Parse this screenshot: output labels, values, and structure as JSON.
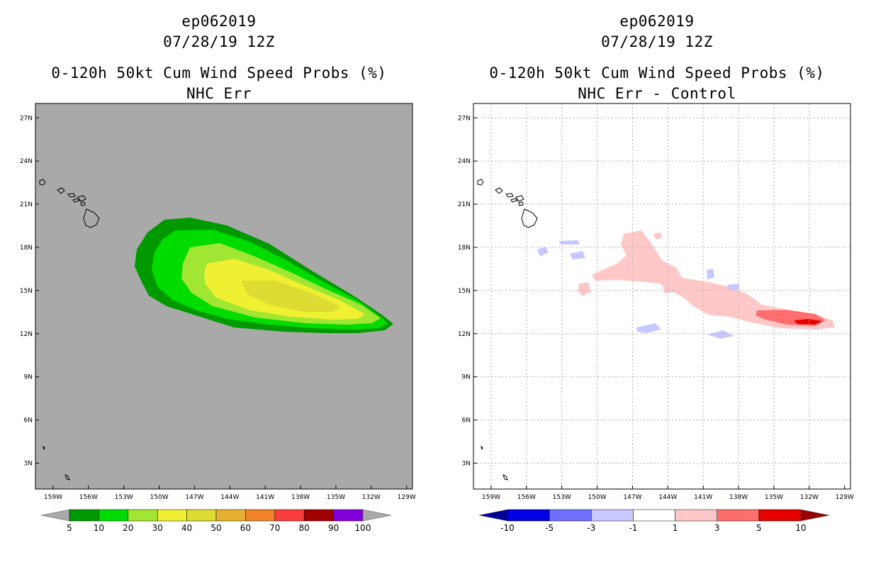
{
  "left_panel": {
    "storm_id": "ep062019",
    "datetime": "07/28/19 12Z",
    "product": "0-120h 50kt Cum Wind Speed Probs (%)",
    "subtitle": "NHC Err",
    "colorbar": {
      "labels": [
        "5",
        "10",
        "20",
        "30",
        "40",
        "50",
        "60",
        "70",
        "80",
        "90",
        "100"
      ],
      "colors": [
        "#009a00",
        "#00dc00",
        "#a0e632",
        "#f0f032",
        "#dcdc32",
        "#e6af2d",
        "#f08228",
        "#fa3c3c",
        "#a00000",
        "#8200dc"
      ],
      "under_color": "#a9a9a9",
      "over_color": "#a9a9a9"
    },
    "background_color": "#a9a9a9"
  },
  "right_panel": {
    "storm_id": "ep062019",
    "datetime": "07/28/19 12Z",
    "product": "0-120h 50kt Cum Wind Speed Probs (%)",
    "subtitle": "NHC Err - Control",
    "colorbar": {
      "labels": [
        "-10",
        "-5",
        "-3",
        "-1",
        "1",
        "3",
        "5",
        "10"
      ],
      "colors": [
        "#0000e6",
        "#6e6eff",
        "#c8c8ff",
        "#ffffff",
        "#ffc8c8",
        "#ff6e6e",
        "#e60000"
      ],
      "under_color": "#000096",
      "over_color": "#960000"
    },
    "background_color": "#ffffff"
  },
  "axes": {
    "lat_labels": [
      "27N",
      "24N",
      "21N",
      "18N",
      "15N",
      "12N",
      "9N",
      "6N",
      "3N"
    ],
    "lon_labels": [
      "159W",
      "156W",
      "153W",
      "150W",
      "147W",
      "144W",
      "141W",
      "138W",
      "135W",
      "132W",
      "129W"
    ],
    "lat_values": [
      27,
      24,
      21,
      18,
      15,
      12,
      9,
      6,
      3
    ],
    "lon_values": [
      -159,
      -156,
      -153,
      -150,
      -147,
      -144,
      -141,
      -138,
      -135,
      -132,
      -129
    ],
    "lon_range": [
      -160.5,
      -128.5
    ],
    "lat_range": [
      1.2,
      28.0
    ]
  },
  "probability_field": {
    "center_track": "WNW from about 12.5N 131W to 16.5N 148W",
    "max_region_level": "40"
  }
}
